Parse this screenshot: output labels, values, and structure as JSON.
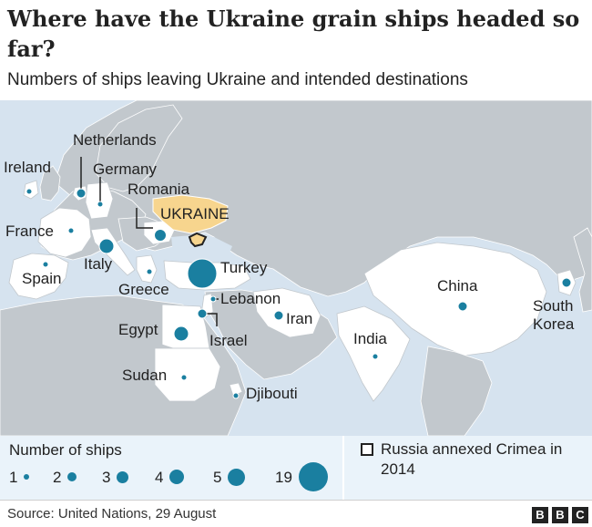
{
  "header": {
    "title": "Where have the Ukraine grain ships headed so far?",
    "subtitle": "Numbers of ships leaving Ukraine and intended destinations"
  },
  "colors": {
    "sea": "#d6e3ef",
    "land_other": "#c2c8cd",
    "land_destination": "#ffffff",
    "ukraine": "#f7d58e",
    "dot": "#1a7fa0",
    "legend_bg": "#eaf3fa"
  },
  "map": {
    "highlight_country": "UKRAINE",
    "destinations": [
      {
        "name": "Ireland",
        "ships": 1
      },
      {
        "name": "Netherlands",
        "ships": 2
      },
      {
        "name": "Germany",
        "ships": 1
      },
      {
        "name": "Romania",
        "ships": 3
      },
      {
        "name": "France",
        "ships": 1
      },
      {
        "name": "Spain",
        "ships": 1
      },
      {
        "name": "Italy",
        "ships": 4
      },
      {
        "name": "Greece",
        "ships": 1
      },
      {
        "name": "Turkey",
        "ships": 19
      },
      {
        "name": "Lebanon",
        "ships": 1
      },
      {
        "name": "Israel",
        "ships": 2
      },
      {
        "name": "Egypt",
        "ships": 4
      },
      {
        "name": "Iran",
        "ships": 2
      },
      {
        "name": "Sudan",
        "ships": 1
      },
      {
        "name": "Djibouti",
        "ships": 1
      },
      {
        "name": "India",
        "ships": 1
      },
      {
        "name": "China",
        "ships": 2
      },
      {
        "name": "South Korea",
        "ships": 2
      }
    ]
  },
  "legend": {
    "title": "Number of ships",
    "sizes": [
      "1",
      "2",
      "3",
      "4",
      "5",
      "19"
    ],
    "crimea_note": "Russia annexed Crimea in 2014"
  },
  "footer": {
    "source": "Source: United Nations, 29 August",
    "logo_letters": [
      "B",
      "B",
      "C"
    ]
  }
}
